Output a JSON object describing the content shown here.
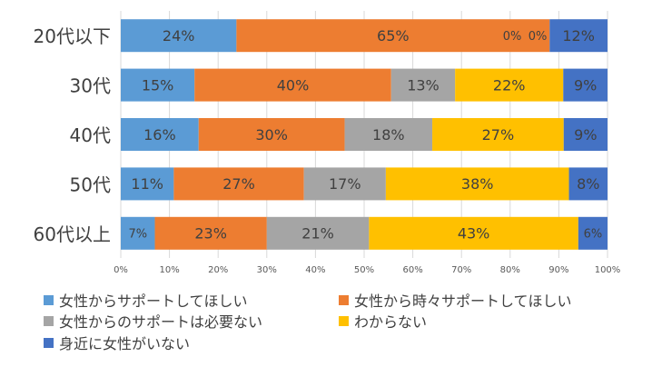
{
  "chart_data": {
    "type": "bar",
    "orientation": "horizontal",
    "stacked": "percent",
    "categories": [
      "20代以下",
      "30代",
      "40代",
      "50代",
      "60代以上"
    ],
    "series": [
      {
        "name": "女性からサポートしてほしい",
        "color": "#5B9BD5",
        "values": [
          24,
          15,
          16,
          11,
          7
        ],
        "labels": [
          "24%",
          "15%",
          "16%",
          "11%",
          "7%"
        ]
      },
      {
        "name": "女性から時々サポートしてほしい",
        "color": "#ED7D31",
        "values": [
          65,
          40,
          30,
          27,
          23
        ],
        "labels": [
          "65%",
          "40%",
          "30%",
          "27%",
          "23%"
        ]
      },
      {
        "name": "女性からのサポートは必要ない",
        "color": "#A5A5A5",
        "values": [
          0,
          13,
          18,
          17,
          21
        ],
        "labels": [
          "0%",
          "13%",
          "18%",
          "17%",
          "21%"
        ]
      },
      {
        "name": "わからない",
        "color": "#FFC000",
        "values": [
          0,
          22,
          27,
          38,
          43
        ],
        "labels": [
          "0%",
          "22%",
          "27%",
          "38%",
          "43%"
        ]
      },
      {
        "name": "身近に女性がいない",
        "color": "#4472C4",
        "values": [
          12,
          9,
          9,
          8,
          6
        ],
        "labels": [
          "12%",
          "9%",
          "9%",
          "8%",
          "6%"
        ]
      }
    ],
    "xticks": [
      "0%",
      "10%",
      "20%",
      "30%",
      "40%",
      "50%",
      "60%",
      "70%",
      "80%",
      "90%",
      "100%"
    ],
    "xlim": [
      0,
      100
    ],
    "grid": true,
    "legend_position": "bottom"
  }
}
